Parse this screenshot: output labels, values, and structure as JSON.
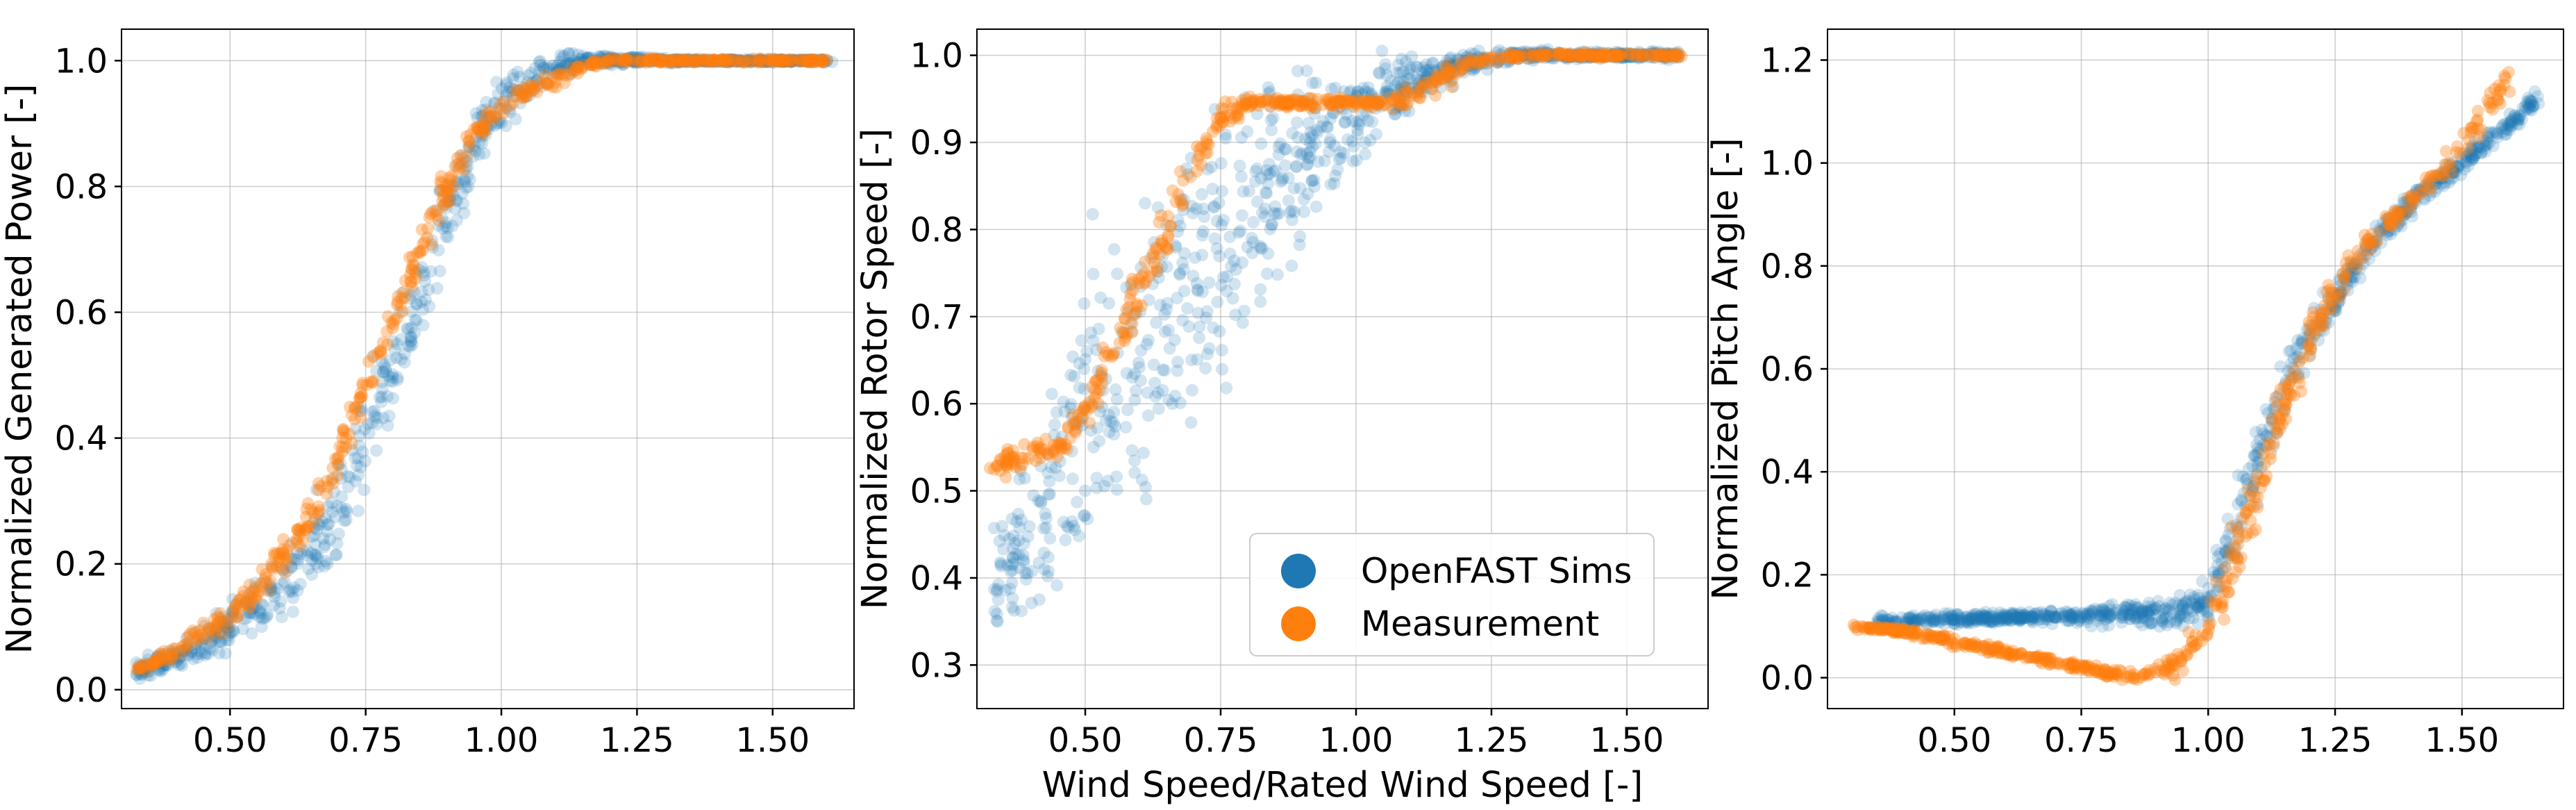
{
  "colors": {
    "sims": "#1f77b4",
    "measurement": "#ff7f0e"
  },
  "legend": {
    "entries": [
      {
        "label": "OpenFAST Sims",
        "color": "#1f77b4"
      },
      {
        "label": "Measurement",
        "color": "#ff7f0e"
      }
    ],
    "placement": "lower-right"
  },
  "chart_data": [
    {
      "type": "scatter",
      "title": "",
      "xlabel": "",
      "ylabel": "Normalized Generated Power [-]",
      "xlim": [
        0.3,
        1.65
      ],
      "ylim": [
        -0.03,
        1.05
      ],
      "xticks": [
        0.5,
        0.75,
        1.0,
        1.25,
        1.5
      ],
      "xtick_labels": [
        "0.50",
        "0.75",
        "1.00",
        "1.25",
        "1.50"
      ],
      "yticks": [
        0.0,
        0.2,
        0.4,
        0.6,
        0.8,
        1.0
      ],
      "ytick_labels": [
        "0.0",
        "0.2",
        "0.4",
        "0.6",
        "0.8",
        "1.0"
      ],
      "grid": true,
      "series": [
        {
          "name": "OpenFAST Sims",
          "x": [
            0.33,
            0.4,
            0.45,
            0.5,
            0.55,
            0.6,
            0.65,
            0.7,
            0.75,
            0.8,
            0.85,
            0.9,
            0.95,
            1.0,
            1.05,
            1.1,
            1.15,
            1.2,
            1.3,
            1.4,
            1.5,
            1.6
          ],
          "y": [
            0.03,
            0.05,
            0.07,
            0.1,
            0.13,
            0.17,
            0.22,
            0.29,
            0.4,
            0.52,
            0.64,
            0.76,
            0.86,
            0.93,
            0.97,
            0.99,
            1.0,
            1.0,
            1.0,
            1.0,
            1.0,
            1.0
          ],
          "spread": [
            0.01,
            0.015,
            0.02,
            0.03,
            0.03,
            0.04,
            0.05,
            0.05,
            0.06,
            0.06,
            0.06,
            0.05,
            0.04,
            0.03,
            0.02,
            0.01,
            0.01,
            0.005,
            0.003,
            0.002,
            0.002,
            0.002
          ]
        },
        {
          "name": "Measurement",
          "x": [
            0.33,
            0.4,
            0.45,
            0.5,
            0.55,
            0.6,
            0.65,
            0.7,
            0.75,
            0.8,
            0.85,
            0.9,
            0.95,
            1.0,
            1.05,
            1.1,
            1.15,
            1.2,
            1.3,
            1.4,
            1.5,
            1.6
          ],
          "y": [
            0.03,
            0.06,
            0.09,
            0.12,
            0.16,
            0.21,
            0.28,
            0.37,
            0.48,
            0.59,
            0.7,
            0.8,
            0.88,
            0.93,
            0.95,
            0.97,
            0.99,
            1.0,
            1.0,
            1.0,
            1.0,
            1.0
          ],
          "spread": [
            0.005,
            0.01,
            0.01,
            0.015,
            0.015,
            0.02,
            0.02,
            0.02,
            0.02,
            0.02,
            0.02,
            0.02,
            0.015,
            0.01,
            0.01,
            0.01,
            0.005,
            0.003,
            0.002,
            0.002,
            0.002,
            0.002
          ]
        }
      ]
    },
    {
      "type": "scatter",
      "title": "",
      "xlabel": "Wind Speed/Rated Wind Speed [-]",
      "ylabel": "Normalized Rotor Speed [-]",
      "xlim": [
        0.3,
        1.65
      ],
      "ylim": [
        0.25,
        1.03
      ],
      "xticks": [
        0.5,
        0.75,
        1.0,
        1.25,
        1.5
      ],
      "xtick_labels": [
        "0.50",
        "0.75",
        "1.00",
        "1.25",
        "1.50"
      ],
      "yticks": [
        0.3,
        0.4,
        0.5,
        0.6,
        0.7,
        0.8,
        0.9,
        1.0
      ],
      "ytick_labels": [
        "0.3",
        "0.4",
        "0.5",
        "0.6",
        "0.7",
        "0.8",
        "0.9",
        "1.0"
      ],
      "grid": true,
      "series": [
        {
          "name": "OpenFAST Sims",
          "x": [
            0.33,
            0.4,
            0.45,
            0.5,
            0.55,
            0.6,
            0.65,
            0.7,
            0.75,
            0.8,
            0.85,
            0.9,
            0.95,
            1.0,
            1.05,
            1.1,
            1.15,
            1.2,
            1.3,
            1.4,
            1.5,
            1.6
          ],
          "y": [
            0.4,
            0.45,
            0.52,
            0.57,
            0.61,
            0.65,
            0.69,
            0.73,
            0.77,
            0.81,
            0.85,
            0.88,
            0.91,
            0.93,
            0.95,
            0.97,
            0.98,
            0.99,
            1.0,
            1.0,
            1.0,
            1.0
          ],
          "spread": [
            0.03,
            0.08,
            0.1,
            0.12,
            0.12,
            0.12,
            0.12,
            0.11,
            0.1,
            0.09,
            0.08,
            0.07,
            0.05,
            0.04,
            0.03,
            0.02,
            0.015,
            0.01,
            0.005,
            0.003,
            0.003,
            0.003
          ]
        },
        {
          "name": "Measurement",
          "x": [
            0.33,
            0.4,
            0.45,
            0.5,
            0.55,
            0.6,
            0.65,
            0.7,
            0.75,
            0.8,
            0.85,
            0.9,
            0.95,
            1.0,
            1.05,
            1.1,
            1.15,
            1.2,
            1.3,
            1.4,
            1.5,
            1.6
          ],
          "y": [
            0.53,
            0.54,
            0.55,
            0.59,
            0.66,
            0.73,
            0.8,
            0.87,
            0.93,
            0.945,
            0.945,
            0.945,
            0.945,
            0.945,
            0.945,
            0.95,
            0.97,
            0.99,
            1.0,
            1.0,
            1.0,
            1.0
          ],
          "spread": [
            0.01,
            0.01,
            0.012,
            0.015,
            0.02,
            0.02,
            0.02,
            0.02,
            0.01,
            0.005,
            0.004,
            0.004,
            0.004,
            0.004,
            0.004,
            0.01,
            0.01,
            0.006,
            0.003,
            0.002,
            0.002,
            0.002
          ]
        }
      ]
    },
    {
      "type": "scatter",
      "title": "",
      "xlabel": "",
      "ylabel": "Normalized Pitch Angle [-]",
      "xlim": [
        0.25,
        1.7
      ],
      "ylim": [
        -0.06,
        1.26
      ],
      "xticks": [
        0.5,
        0.75,
        1.0,
        1.25,
        1.5
      ],
      "xtick_labels": [
        "0.50",
        "0.75",
        "1.00",
        "1.25",
        "1.50"
      ],
      "yticks": [
        0.0,
        0.2,
        0.4,
        0.6,
        0.8,
        1.0,
        1.2
      ],
      "ytick_labels": [
        "0.0",
        "0.2",
        "0.4",
        "0.6",
        "0.8",
        "1.0",
        "1.2"
      ],
      "grid": true,
      "series": [
        {
          "name": "OpenFAST Sims",
          "x": [
            0.35,
            0.45,
            0.55,
            0.65,
            0.75,
            0.85,
            0.95,
            1.0,
            1.05,
            1.1,
            1.15,
            1.2,
            1.25,
            1.3,
            1.35,
            1.4,
            1.45,
            1.5,
            1.55,
            1.6,
            1.65
          ],
          "y": [
            0.11,
            0.112,
            0.115,
            0.118,
            0.12,
            0.125,
            0.13,
            0.15,
            0.27,
            0.44,
            0.57,
            0.66,
            0.74,
            0.81,
            0.87,
            0.92,
            0.96,
            1.0,
            1.04,
            1.08,
            1.13
          ],
          "spread": [
            0.006,
            0.007,
            0.008,
            0.008,
            0.01,
            0.015,
            0.02,
            0.03,
            0.05,
            0.05,
            0.04,
            0.03,
            0.025,
            0.02,
            0.02,
            0.015,
            0.015,
            0.012,
            0.012,
            0.012,
            0.012
          ]
        },
        {
          "name": "Measurement",
          "x": [
            0.3,
            0.4,
            0.5,
            0.6,
            0.7,
            0.8,
            0.85,
            0.9,
            0.95,
            1.0,
            1.05,
            1.1,
            1.15,
            1.2,
            1.25,
            1.3,
            1.35,
            1.4,
            1.45,
            1.5,
            1.55,
            1.6
          ],
          "y": [
            0.1,
            0.09,
            0.07,
            0.05,
            0.03,
            0.01,
            0.005,
            0.01,
            0.03,
            0.1,
            0.22,
            0.38,
            0.53,
            0.66,
            0.75,
            0.83,
            0.88,
            0.93,
            0.98,
            1.03,
            1.1,
            1.18
          ],
          "spread": [
            0.005,
            0.005,
            0.006,
            0.006,
            0.006,
            0.006,
            0.006,
            0.01,
            0.02,
            0.03,
            0.04,
            0.04,
            0.035,
            0.03,
            0.02,
            0.02,
            0.015,
            0.015,
            0.015,
            0.02,
            0.02,
            0.02
          ]
        }
      ]
    }
  ]
}
